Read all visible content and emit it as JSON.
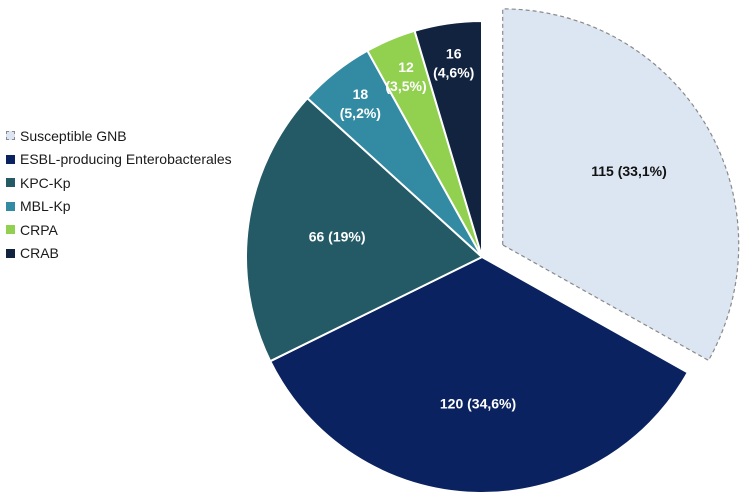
{
  "chart_data": {
    "type": "pie",
    "slices": [
      {
        "label": "Susceptible GNB",
        "value": 115,
        "text": "115 (33,1%)",
        "lines": [
          "115 (33,1%)"
        ],
        "color": "#dce6f2",
        "stroke": "#8a8a8a",
        "dashed": true,
        "exploded": true,
        "text_color": "#111111"
      },
      {
        "label": "ESBL-producing Enterobacterales",
        "value": 120,
        "text": "120 (34,6%)",
        "lines": [
          "120 (34,6%)"
        ],
        "color": "#0b2260",
        "stroke": "#ffffff",
        "dashed": false,
        "exploded": false,
        "text_color": "#ffffff"
      },
      {
        "label": "KPC-Kp",
        "value": 66,
        "text": "66 (19%)",
        "lines": [
          "66 (19%)"
        ],
        "color": "#235a66",
        "stroke": "#ffffff",
        "dashed": false,
        "exploded": false,
        "text_color": "#ffffff"
      },
      {
        "label": "MBL-Kp",
        "value": 18,
        "text": "18 (5,2%)",
        "lines": [
          "18",
          "(5,2%)"
        ],
        "color": "#338ba3",
        "stroke": "#ffffff",
        "dashed": false,
        "exploded": false,
        "text_color": "#ffffff"
      },
      {
        "label": "CRPA",
        "value": 12,
        "text": "12 (3,5%)",
        "lines": [
          "12",
          "(3,5%)"
        ],
        "color": "#92d050",
        "stroke": "#ffffff",
        "dashed": false,
        "exploded": false,
        "text_color": "#ffffff"
      },
      {
        "label": "CRAB",
        "value": 16,
        "text": "16 (4,6%)",
        "lines": [
          "16",
          "(4,6%)"
        ],
        "color": "#12233f",
        "stroke": "#ffffff",
        "dashed": false,
        "exploded": false,
        "text_color": "#ffffff"
      }
    ],
    "start_angle": "12 o'clock",
    "direction": "clockwise",
    "legend_position": "left"
  }
}
